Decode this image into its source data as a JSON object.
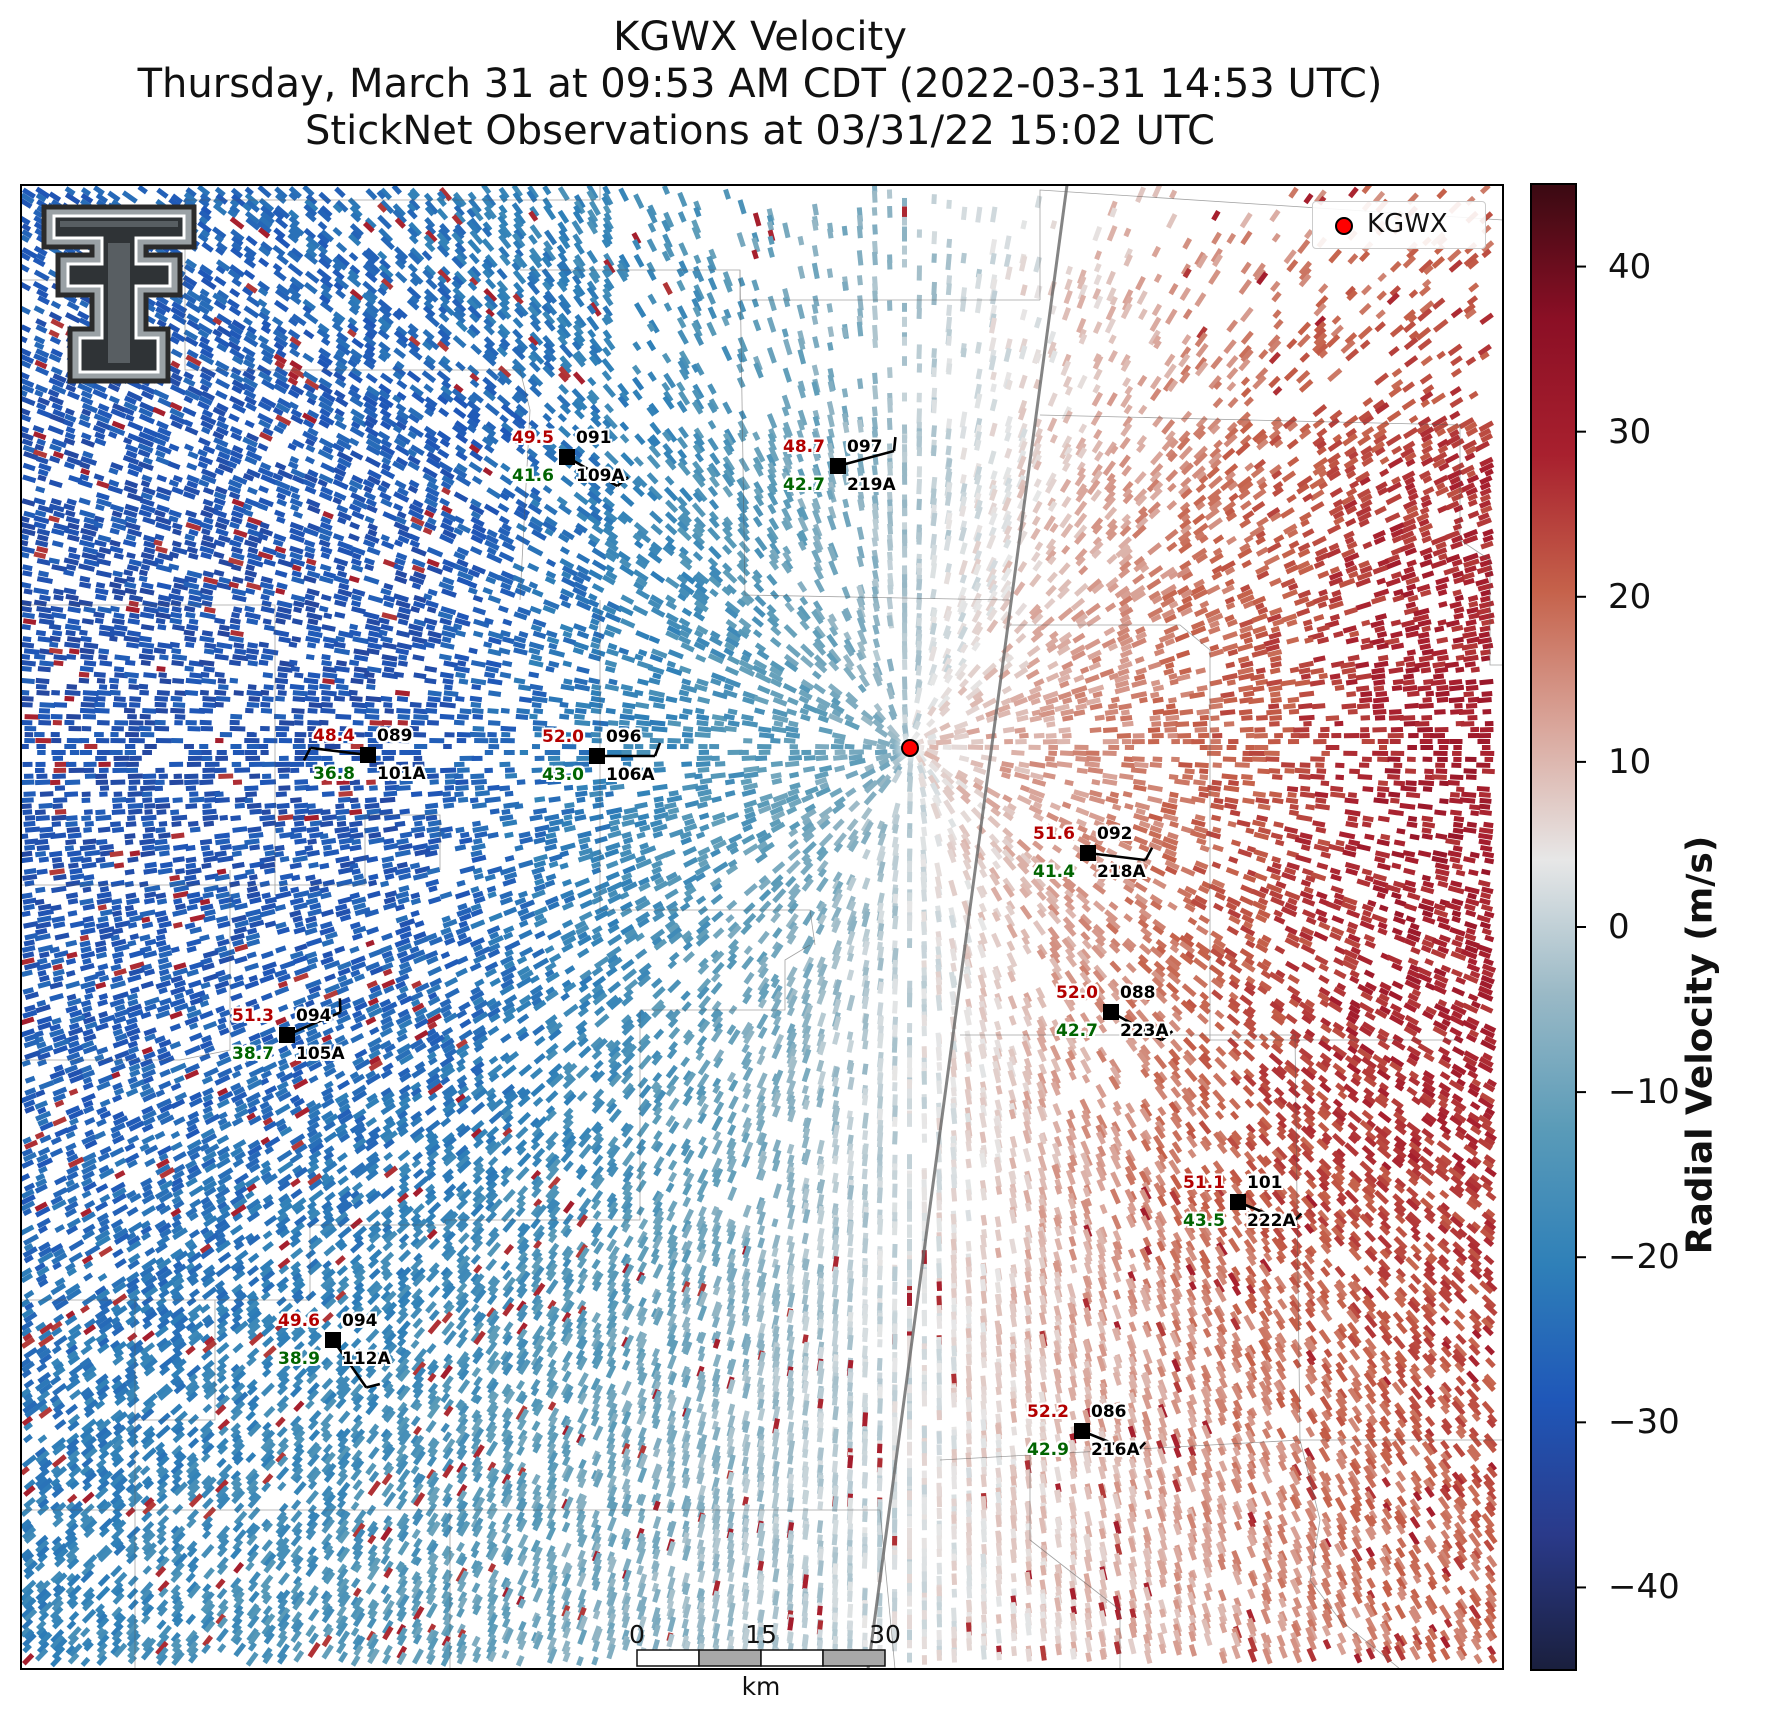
{
  "title": {
    "line1": "KGWX Velocity",
    "line2": "Thursday, March 31 at 09:53 AM CDT (2022-03-31 14:53 UTC)",
    "line3": "StickNet Observations at 03/31/22 15:02 UTC"
  },
  "colorbar": {
    "label": "Radial Velocity (m/s)",
    "ticks": [
      "40",
      "30",
      "20",
      "10",
      "0",
      "−10",
      "−20",
      "−30",
      "−40"
    ],
    "tick_values": [
      40,
      30,
      20,
      10,
      0,
      -10,
      -20,
      -30,
      -40
    ],
    "range": [
      -45,
      45
    ],
    "colors": [
      "#1a1f3d",
      "#2a3a8a",
      "#1f57b8",
      "#2f80b8",
      "#5a9bb8",
      "#9ab9c6",
      "#e7e7e7",
      "#d9a59a",
      "#c5614a",
      "#a8202e",
      "#8b0f25",
      "#3a0a12"
    ]
  },
  "legend": {
    "label": "KGWX",
    "marker_color": "#ff0000"
  },
  "logo": {
    "icon": "texas-tech-double-t-logo"
  },
  "scale_bar": {
    "ticks": [
      "0",
      "15",
      "30"
    ],
    "unit": "km"
  },
  "stations": [
    {
      "id": "109A",
      "temp": "49.5",
      "dew": "41.6",
      "pres": "091"
    },
    {
      "id": "219A",
      "temp": "48.7",
      "dew": "42.7",
      "pres": "097"
    },
    {
      "id": "101A",
      "temp": "48.4",
      "dew": "36.8",
      "pres": "089"
    },
    {
      "id": "106A",
      "temp": "52.0",
      "dew": "43.0",
      "pres": "096"
    },
    {
      "id": "218A",
      "temp": "51.6",
      "dew": "41.4",
      "pres": "092"
    },
    {
      "id": "223A",
      "temp": "52.0",
      "dew": "42.7",
      "pres": "088"
    },
    {
      "id": "105A",
      "temp": "51.3",
      "dew": "38.7",
      "pres": "094"
    },
    {
      "id": "222A",
      "temp": "51.1",
      "dew": "43.5",
      "pres": "101"
    },
    {
      "id": "112A",
      "temp": "49.6",
      "dew": "38.9",
      "pres": "094"
    },
    {
      "id": "216A",
      "temp": "52.2",
      "dew": "42.9",
      "pres": "086"
    }
  ]
}
